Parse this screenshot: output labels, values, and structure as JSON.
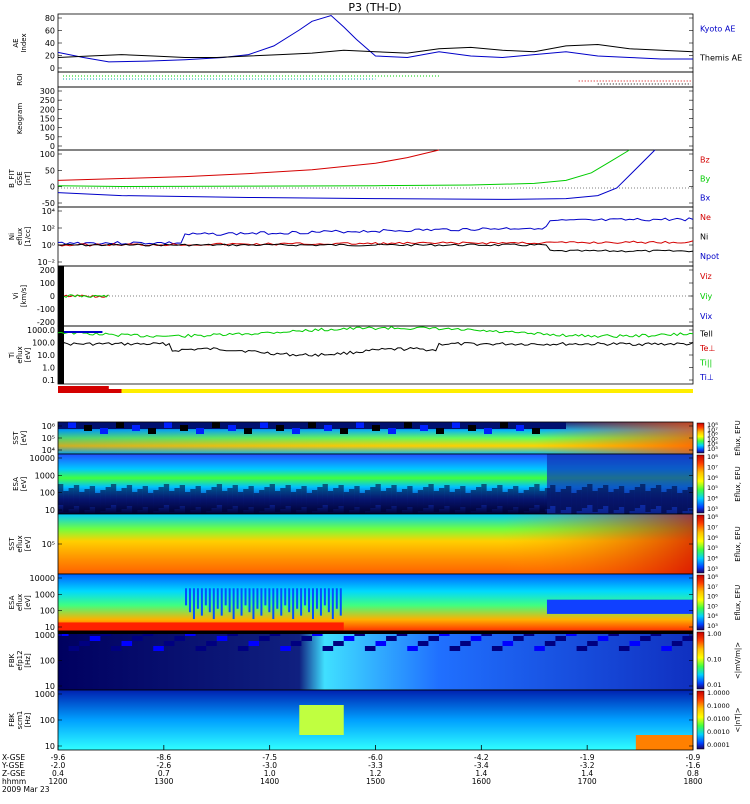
{
  "title": "P3 (TH-D)",
  "colors": {
    "red": "#d40000",
    "green": "#00cc00",
    "blue": "#0000c8",
    "black": "#000000"
  },
  "chart_data": [
    {
      "type": "line",
      "id": "ae",
      "ylabel": "AE Index",
      "ylim": [
        0,
        80
      ],
      "yticks": [
        "80",
        "60",
        "40",
        "20",
        "0"
      ],
      "series": [
        {
          "name": "Kyoto AE",
          "color": "#0000c8",
          "x": [
            0,
            0.04,
            0.08,
            0.14,
            0.2,
            0.26,
            0.3,
            0.34,
            0.38,
            0.4,
            0.43,
            0.45,
            0.47,
            0.5,
            0.55,
            0.6,
            0.65,
            0.7,
            0.75,
            0.8,
            0.85,
            0.9,
            0.95,
            1.0
          ],
          "y": [
            27,
            20,
            14,
            15,
            17,
            20,
            24,
            36,
            58,
            70,
            78,
            62,
            45,
            22,
            20,
            28,
            22,
            20,
            24,
            28,
            22,
            20,
            18,
            18
          ]
        },
        {
          "name": "Themis AE",
          "color": "#000000",
          "x": [
            0,
            0.05,
            0.1,
            0.15,
            0.2,
            0.25,
            0.3,
            0.35,
            0.4,
            0.45,
            0.5,
            0.55,
            0.6,
            0.65,
            0.7,
            0.75,
            0.8,
            0.85,
            0.9,
            0.95,
            1.0
          ],
          "y": [
            20,
            22,
            24,
            22,
            20,
            20,
            22,
            24,
            26,
            30,
            28,
            26,
            32,
            34,
            30,
            28,
            36,
            38,
            32,
            30,
            28
          ]
        }
      ]
    },
    {
      "type": "line",
      "id": "roi",
      "ylabel": "ROI"
    },
    {
      "type": "line",
      "id": "keogram",
      "ylabel": "Keogram",
      "ylim": [
        0,
        300
      ],
      "yticks": [
        "300",
        "250",
        "200",
        "150",
        "100",
        "50",
        "0"
      ]
    },
    {
      "type": "line",
      "id": "bfield",
      "ylabel": "B_FIT GSE [nT]",
      "ylim": [
        -50,
        100
      ],
      "yticks": [
        "100",
        "50",
        "0",
        "-50"
      ],
      "series": [
        {
          "name": "Bz",
          "color": "#d40000",
          "x": [
            0,
            0.1,
            0.2,
            0.3,
            0.4,
            0.5,
            0.55,
            0.6
          ],
          "y": [
            20,
            25,
            30,
            38,
            48,
            65,
            80,
            100
          ]
        },
        {
          "name": "By",
          "color": "#00cc00",
          "x": [
            0,
            0.1,
            0.3,
            0.5,
            0.65,
            0.75,
            0.8,
            0.84,
            0.87,
            0.9
          ],
          "y": [
            6,
            4,
            5,
            6,
            8,
            12,
            20,
            40,
            70,
            100
          ]
        },
        {
          "name": "Bx",
          "color": "#0000c8",
          "x": [
            0,
            0.1,
            0.3,
            0.5,
            0.7,
            0.8,
            0.85,
            0.88,
            0.91,
            0.94
          ],
          "y": [
            -12,
            -20,
            -25,
            -28,
            -30,
            -28,
            -20,
            0,
            50,
            100
          ]
        }
      ]
    },
    {
      "type": "line",
      "id": "density",
      "ylabel": "Ni eflux [1/cc]",
      "yticks": [
        "10⁴",
        "10²",
        "10⁰",
        "10⁻²"
      ],
      "series": [
        {
          "name": "Ne",
          "color": "#d40000"
        },
        {
          "name": "Ni",
          "color": "#000000"
        },
        {
          "name": "Npot",
          "color": "#0000c8"
        }
      ]
    },
    {
      "type": "line",
      "id": "velocity",
      "ylabel": "Vi [km/s]",
      "ylim": [
        -300,
        300
      ],
      "yticks": [
        "200",
        "100",
        "0",
        "-100",
        "-200"
      ],
      "series": [
        {
          "name": "Viz",
          "color": "#d40000"
        },
        {
          "name": "Viy",
          "color": "#00cc00"
        },
        {
          "name": "Vix",
          "color": "#0000c8"
        }
      ]
    },
    {
      "type": "line",
      "id": "temperature",
      "ylabel": "Ti eflux [eV]",
      "yticks": [
        "1000.0",
        "100.0",
        "10.0",
        "1.0",
        "0.1"
      ],
      "series": [
        {
          "name": "Tell",
          "color": "#000000"
        },
        {
          "name": "Te⊥",
          "color": "#d40000"
        },
        {
          "name": "Ti||",
          "color": "#00cc00"
        },
        {
          "name": "Ti⊥",
          "color": "#0000c8"
        }
      ]
    },
    {
      "type": "heatmap",
      "id": "sst-i",
      "ylabel": "SST [eV]",
      "yticks": [
        "10⁶",
        "10⁵",
        "10⁴"
      ],
      "colorbar": [
        "10⁸",
        "10⁷",
        "10⁶",
        "10⁵",
        "10⁴",
        "10³"
      ],
      "cblabel": "Eflux, EFU"
    },
    {
      "type": "heatmap",
      "id": "esa-i",
      "ylabel": "ESA [eV]",
      "yticks": [
        "10000",
        "1000",
        "100",
        "10"
      ],
      "colorbar": [
        "10⁸",
        "10⁷",
        "10⁶",
        "10⁵",
        "10⁴",
        "10³"
      ],
      "cblabel": "Eflux, EFU"
    },
    {
      "type": "heatmap",
      "id": "sst-e",
      "ylabel": "SST eflux [eV]",
      "yticks": [
        "10⁵"
      ],
      "colorbar": [
        "10⁸",
        "10⁷",
        "10⁶",
        "10⁵",
        "10⁴",
        "10³"
      ],
      "cblabel": "Eflux, EFU"
    },
    {
      "type": "heatmap",
      "id": "esa-e",
      "ylabel": "ESA eflux [eV]",
      "yticks": [
        "10000",
        "1000",
        "100",
        "10"
      ],
      "colorbar": [
        "10⁸",
        "10⁷",
        "10⁶",
        "10⁵",
        "10⁴",
        "10³"
      ],
      "cblabel": "Eflux, EFU"
    },
    {
      "type": "heatmap",
      "id": "fbk-e",
      "ylabel": "FBK efp12 [Hz]",
      "yticks": [
        "1000",
        "100",
        "10"
      ],
      "colorbar": [
        "1.00",
        "0.10",
        "0.01"
      ],
      "cblabel": "<|mV/m|>"
    },
    {
      "type": "heatmap",
      "id": "fbk-b",
      "ylabel": "FBK scm1 [Hz]",
      "yticks": [
        "1000",
        "100",
        "10"
      ],
      "colorbar": [
        "1.0000",
        "0.1000",
        "0.0100",
        "0.0010",
        "0.0001"
      ],
      "cblabel": "<|nT|>"
    }
  ],
  "xaxis": {
    "row_labels": [
      "X-GSE",
      "Y-GSE",
      "Z-GSE",
      "hhmm",
      "2009 Mar 23"
    ],
    "columns": [
      [
        "-9.6",
        "-2.0",
        "0.4",
        "1200"
      ],
      [
        "-8.6",
        "-2.6",
        "0.7",
        "1300"
      ],
      [
        "-7.5",
        "-3.0",
        "1.0",
        "1400"
      ],
      [
        "-6.0",
        "-3.3",
        "1.2",
        "1500"
      ],
      [
        "-4.2",
        "-3.4",
        "1.4",
        "1600"
      ],
      [
        "-1.9",
        "-3.2",
        "1.4",
        "1700"
      ],
      [
        "-0.9",
        "-1.6",
        "0.8",
        "1800"
      ]
    ]
  }
}
